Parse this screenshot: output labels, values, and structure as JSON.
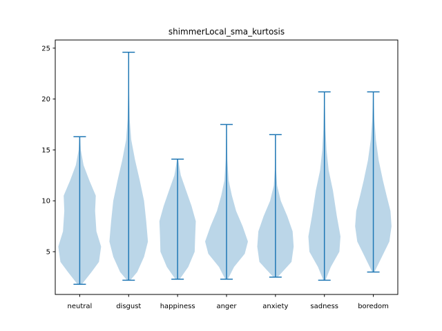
{
  "chart_data": {
    "type": "violin",
    "title": "shimmerLocal_sma_kurtosis",
    "xlabel": "",
    "ylabel": "",
    "categories": [
      "neutral",
      "disgust",
      "happiness",
      "anger",
      "anxiety",
      "sadness",
      "boredom"
    ],
    "ylim": [
      0.8,
      25.8
    ],
    "yticks": [
      5,
      10,
      15,
      20,
      25
    ],
    "grid": false,
    "colors": {
      "body": "#1f77b4",
      "body_alpha": 0.3,
      "lines": "#1f77b4",
      "axis": "#000000"
    },
    "series": [
      {
        "category": "neutral",
        "min": 1.8,
        "max": 16.3,
        "density": [
          [
            1.8,
            0.1
          ],
          [
            3,
            0.55
          ],
          [
            4,
            0.9
          ],
          [
            5.5,
            1.0
          ],
          [
            7,
            0.78
          ],
          [
            9,
            0.72
          ],
          [
            10.5,
            0.75
          ],
          [
            12,
            0.45
          ],
          [
            13.5,
            0.18
          ],
          [
            15,
            0.05
          ],
          [
            16.3,
            0.02
          ]
        ]
      },
      {
        "category": "disgust",
        "min": 2.2,
        "max": 24.6,
        "density": [
          [
            2.2,
            0.08
          ],
          [
            3,
            0.4
          ],
          [
            4.5,
            0.72
          ],
          [
            6,
            0.9
          ],
          [
            8,
            0.82
          ],
          [
            10,
            0.72
          ],
          [
            12,
            0.52
          ],
          [
            14,
            0.3
          ],
          [
            16,
            0.12
          ],
          [
            18,
            0.05
          ],
          [
            21,
            0.02
          ],
          [
            24.6,
            0.01
          ]
        ]
      },
      {
        "category": "happiness",
        "min": 2.3,
        "max": 14.1,
        "density": [
          [
            2.3,
            0.1
          ],
          [
            3.5,
            0.5
          ],
          [
            5,
            0.8
          ],
          [
            6.5,
            0.82
          ],
          [
            8,
            0.85
          ],
          [
            9.5,
            0.65
          ],
          [
            11,
            0.4
          ],
          [
            12.5,
            0.15
          ],
          [
            14.1,
            0.02
          ]
        ]
      },
      {
        "category": "anger",
        "min": 2.3,
        "max": 17.5,
        "density": [
          [
            2.3,
            0.06
          ],
          [
            3.5,
            0.35
          ],
          [
            4.8,
            0.85
          ],
          [
            6,
            1.0
          ],
          [
            7.5,
            0.75
          ],
          [
            9,
            0.45
          ],
          [
            10.5,
            0.25
          ],
          [
            12,
            0.1
          ],
          [
            14,
            0.04
          ],
          [
            17.5,
            0.01
          ]
        ]
      },
      {
        "category": "anxiety",
        "min": 2.5,
        "max": 16.5,
        "density": [
          [
            2.5,
            0.1
          ],
          [
            4,
            0.75
          ],
          [
            5.5,
            0.85
          ],
          [
            7,
            0.8
          ],
          [
            8.5,
            0.55
          ],
          [
            10,
            0.25
          ],
          [
            11.5,
            0.08
          ],
          [
            13,
            0.03
          ],
          [
            16.5,
            0.01
          ]
        ]
      },
      {
        "category": "sadness",
        "min": 2.2,
        "max": 20.7,
        "density": [
          [
            2.2,
            0.05
          ],
          [
            3.5,
            0.3
          ],
          [
            5,
            0.7
          ],
          [
            6.5,
            0.75
          ],
          [
            8.5,
            0.58
          ],
          [
            11,
            0.4
          ],
          [
            13,
            0.2
          ],
          [
            15,
            0.1
          ],
          [
            17,
            0.05
          ],
          [
            20.7,
            0.01
          ]
        ]
      },
      {
        "category": "boredom",
        "min": 3.0,
        "max": 20.7,
        "density": [
          [
            3,
            0.05
          ],
          [
            4.5,
            0.4
          ],
          [
            6,
            0.75
          ],
          [
            7.5,
            0.85
          ],
          [
            9,
            0.8
          ],
          [
            10.5,
            0.62
          ],
          [
            12,
            0.45
          ],
          [
            14,
            0.25
          ],
          [
            16,
            0.12
          ],
          [
            18,
            0.05
          ],
          [
            20.7,
            0.01
          ]
        ]
      }
    ]
  }
}
